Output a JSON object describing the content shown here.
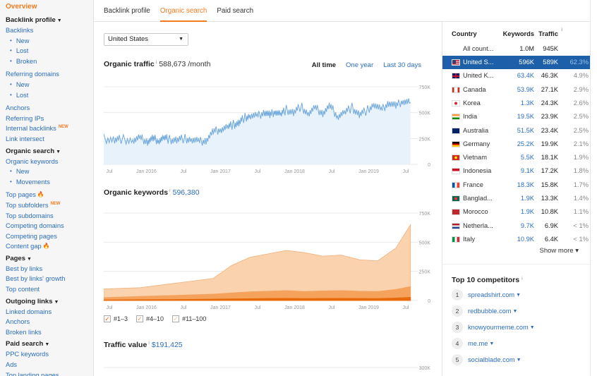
{
  "sidebar": {
    "overview": "Overview",
    "sections": [
      {
        "head": "Backlink profile",
        "caret": true,
        "items": [
          {
            "label": "Backlinks"
          },
          {
            "label": "New",
            "sub": true
          },
          {
            "label": "Lost",
            "sub": true
          },
          {
            "label": "Broken",
            "sub": true
          }
        ]
      },
      {
        "gap": true,
        "items": [
          {
            "label": "Referring domains"
          },
          {
            "label": "New",
            "sub": true
          },
          {
            "label": "Lost",
            "sub": true
          }
        ]
      },
      {
        "gap": true,
        "items": [
          {
            "label": "Anchors"
          },
          {
            "label": "Referring IPs"
          },
          {
            "label": "Internal backlinks",
            "badge": "NEW"
          },
          {
            "label": "Link intersect"
          }
        ]
      },
      {
        "head": "Organic search",
        "caret": true,
        "items": [
          {
            "label": "Organic keywords"
          },
          {
            "label": "New",
            "sub": true
          },
          {
            "label": "Movements",
            "sub": true
          }
        ]
      },
      {
        "gap": true,
        "items": [
          {
            "label": "Top pages",
            "fire": true
          },
          {
            "label": "Top subfolders",
            "badge": "NEW"
          },
          {
            "label": "Top subdomains"
          },
          {
            "label": "Competing domains"
          },
          {
            "label": "Competing pages"
          },
          {
            "label": "Content gap",
            "fire": true
          }
        ]
      },
      {
        "head": "Pages",
        "caret": true,
        "items": [
          {
            "label": "Best by links"
          },
          {
            "label": "Best by links' growth"
          },
          {
            "label": "Top content"
          }
        ]
      },
      {
        "head": "Outgoing links",
        "caret": true,
        "items": [
          {
            "label": "Linked domains"
          },
          {
            "label": "Anchors"
          },
          {
            "label": "Broken links"
          }
        ]
      },
      {
        "head": "Paid search",
        "caret": true,
        "items": [
          {
            "label": "PPC keywords"
          },
          {
            "label": "Ads"
          },
          {
            "label": "Top landing pages"
          }
        ]
      }
    ]
  },
  "tabs": [
    "Backlink profile",
    "Organic search",
    "Paid search"
  ],
  "active_tab": 1,
  "country_select": "United States",
  "traffic": {
    "title": "Organic traffic",
    "value": "588,673",
    "unit": "/month"
  },
  "range": {
    "options": [
      "All time",
      "One year",
      "Last 30 days"
    ],
    "selected": 0
  },
  "keywords": {
    "title": "Organic keywords",
    "value": "596,380"
  },
  "legend": [
    "#1–3",
    "#4–10",
    "#11–100"
  ],
  "traffic_value": {
    "title": "Traffic value",
    "value": "$191,425"
  },
  "chart_data": [
    {
      "type": "line",
      "title": "Organic traffic",
      "x_ticks": [
        "Jul",
        "Jan 2016",
        "Jul",
        "Jan 2017",
        "Jul",
        "Jan 2018",
        "Jul",
        "Jan 2019",
        "Jul"
      ],
      "y_ticks": [
        "750K",
        "500K",
        "250K",
        "0"
      ],
      "ylim": [
        0,
        750000
      ],
      "x": [
        0,
        0.3,
        0.5,
        0.8,
        1.0,
        1.2,
        1.35,
        1.5,
        1.65,
        1.8,
        2.0,
        2.2,
        2.4,
        2.6,
        2.8,
        3.0,
        3.2,
        3.4,
        3.55,
        3.7,
        3.85,
        4.0,
        4.2,
        4.4,
        4.55,
        4.7,
        4.85,
        5.0,
        5.2,
        5.4,
        5.6,
        5.8,
        6.0,
        6.2,
        6.4,
        6.6,
        6.8,
        7.0,
        7.2,
        7.4,
        7.6,
        7.8,
        8.0,
        8.2,
        8.4
      ],
      "y": [
        250000,
        235000,
        245000,
        230000,
        250000,
        225000,
        245000,
        235000,
        255000,
        240000,
        235000,
        250000,
        240000,
        215000,
        235000,
        310000,
        345000,
        360000,
        385000,
        400000,
        450000,
        470000,
        460000,
        510000,
        470000,
        520000,
        480000,
        530000,
        500000,
        560000,
        490000,
        540000,
        500000,
        560000,
        470000,
        500000,
        550000,
        480000,
        520000,
        580000,
        520000,
        600000,
        560000,
        620000,
        600000
      ]
    },
    {
      "type": "area",
      "title": "Organic keywords",
      "x_ticks": [
        "Jul",
        "Jan 2016",
        "Jul",
        "Jan 2017",
        "Jul",
        "Jan 2018",
        "Jul",
        "Jan 2019",
        "Jul"
      ],
      "y_ticks": [
        "750K",
        "500K",
        "250K",
        "0"
      ],
      "ylim": [
        0,
        750000
      ],
      "x": [
        0,
        1.0,
        2.0,
        3.0,
        3.5,
        4.0,
        4.5,
        5.0,
        5.5,
        6.0,
        6.5,
        7.0,
        7.5,
        8.0,
        8.4
      ],
      "series": [
        {
          "name": "#1–3",
          "values": [
            5000,
            7000,
            9000,
            12000,
            14000,
            16000,
            18000,
            19000,
            17000,
            18000,
            19000,
            18000,
            17000,
            22000,
            28000
          ]
        },
        {
          "name": "#4–10",
          "values": [
            25000,
            35000,
            45000,
            55000,
            65000,
            75000,
            80000,
            85000,
            78000,
            82000,
            85000,
            80000,
            78000,
            95000,
            120000
          ]
        },
        {
          "name": "#11–100",
          "values": [
            100000,
            110000,
            150000,
            190000,
            300000,
            370000,
            400000,
            430000,
            410000,
            380000,
            390000,
            350000,
            340000,
            450000,
            650000
          ]
        }
      ]
    },
    {
      "type": "area",
      "title": "Traffic value",
      "y_ticks": [
        "300K"
      ]
    }
  ],
  "countries": {
    "headers": {
      "country": "Country",
      "keywords": "Keywords",
      "traffic": "Traffic"
    },
    "all": {
      "name": "All count...",
      "keywords": "1.0M",
      "traffic": "945K"
    },
    "rows": [
      {
        "name": "United S...",
        "keywords": "596K",
        "traffic": "589K",
        "pct": "62.3%",
        "flag": "us",
        "highlight": true
      },
      {
        "name": "United K...",
        "keywords": "63.4K",
        "traffic": "46.3K",
        "pct": "4.9%",
        "flag": "uk"
      },
      {
        "name": "Canada",
        "keywords": "53.9K",
        "traffic": "27.1K",
        "pct": "2.9%",
        "flag": "ca"
      },
      {
        "name": "Korea",
        "keywords": "1.3K",
        "traffic": "24.3K",
        "pct": "2.6%",
        "flag": "kr"
      },
      {
        "name": "India",
        "keywords": "19.5K",
        "traffic": "23.9K",
        "pct": "2.5%",
        "flag": "in"
      },
      {
        "name": "Australia",
        "keywords": "51.5K",
        "traffic": "23.4K",
        "pct": "2.5%",
        "flag": "au"
      },
      {
        "name": "Germany",
        "keywords": "25.2K",
        "traffic": "19.9K",
        "pct": "2.1%",
        "flag": "de"
      },
      {
        "name": "Vietnam",
        "keywords": "5.5K",
        "traffic": "18.1K",
        "pct": "1.9%",
        "flag": "vn"
      },
      {
        "name": "Indonesia",
        "keywords": "9.1K",
        "traffic": "17.2K",
        "pct": "1.8%",
        "flag": "id"
      },
      {
        "name": "France",
        "keywords": "18.3K",
        "traffic": "15.8K",
        "pct": "1.7%",
        "flag": "fr"
      },
      {
        "name": "Banglad...",
        "keywords": "1.9K",
        "traffic": "13.3K",
        "pct": "1.4%",
        "flag": "bd"
      },
      {
        "name": "Morocco",
        "keywords": "1.9K",
        "traffic": "10.8K",
        "pct": "1.1%",
        "flag": "ma"
      },
      {
        "name": "Netherla...",
        "keywords": "9.7K",
        "traffic": "6.9K",
        "pct": "< 1%",
        "flag": "nl"
      },
      {
        "name": "Italy",
        "keywords": "10.9K",
        "traffic": "6.4K",
        "pct": "< 1%",
        "flag": "it"
      }
    ],
    "show_more": "Show more ▾"
  },
  "competitors": {
    "title": "Top 10 competitors",
    "items": [
      "spreadshirt.com",
      "redbubble.com",
      "knowyourmeme.com",
      "me.me",
      "socialblade.com"
    ]
  },
  "colors": {
    "accent": "#f47b20",
    "link": "#2c6ec0",
    "highlight": "#1d5fa8",
    "line": "#6fa8dc",
    "area_light": "#fad2ae",
    "area_mid": "#f4a25c",
    "area_dark": "#e86a0c"
  }
}
